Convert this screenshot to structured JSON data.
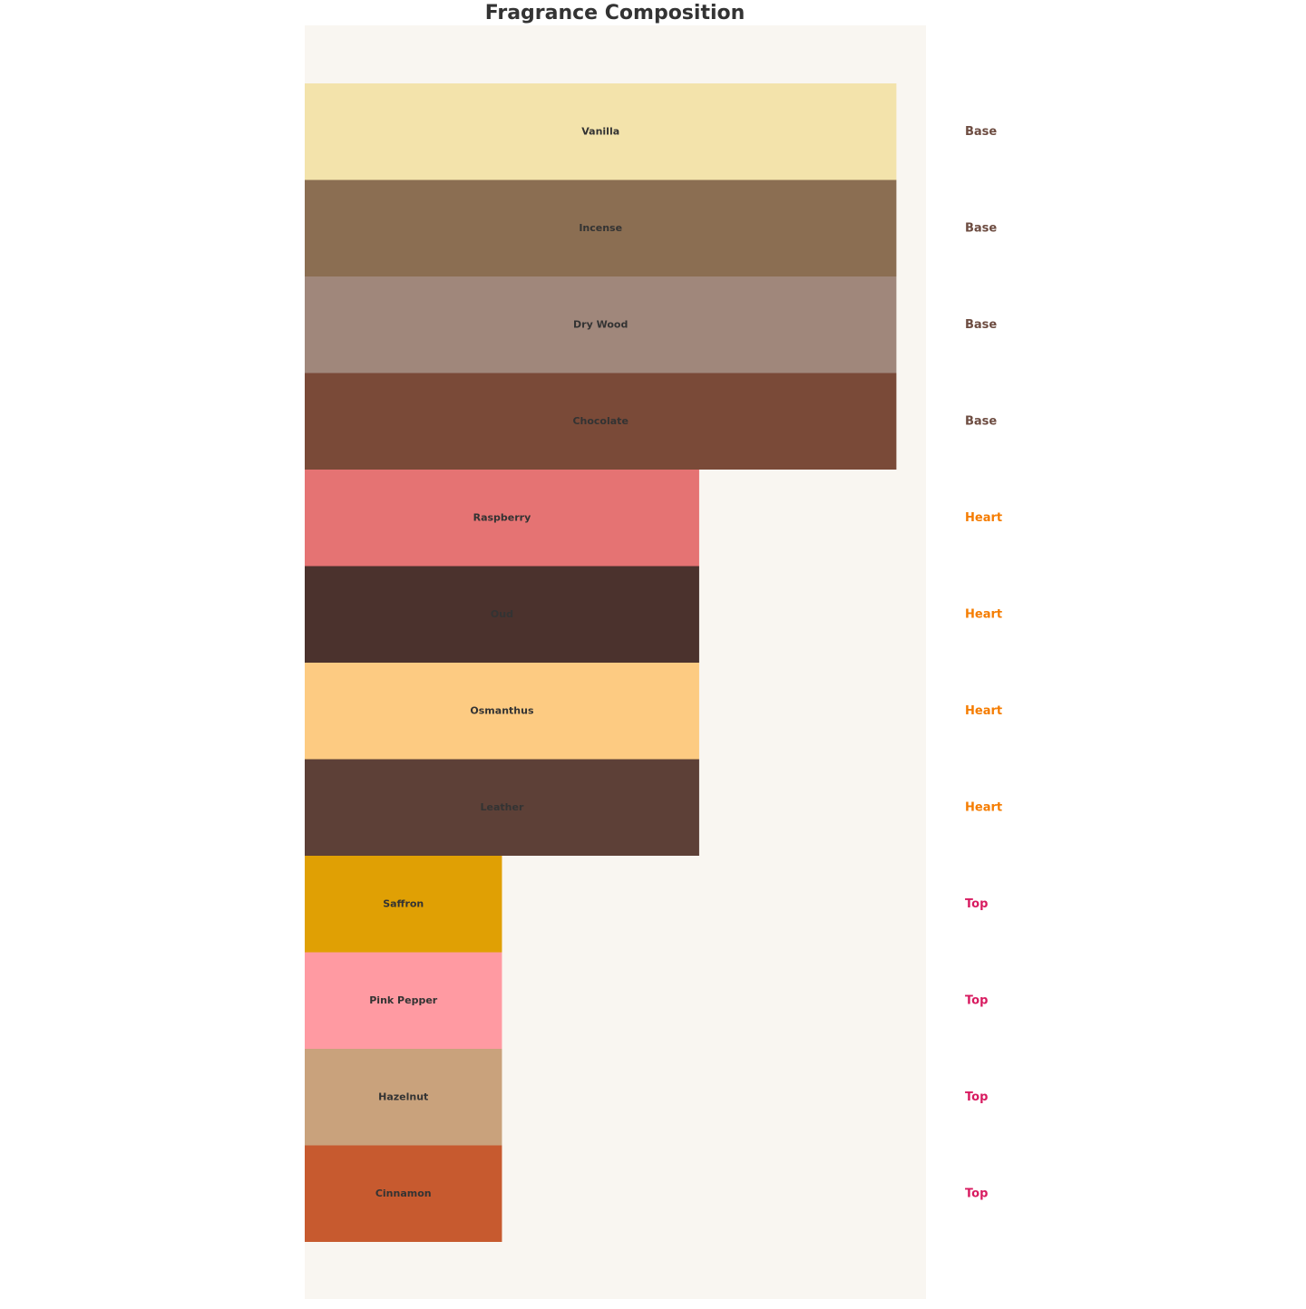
{
  "chart_data": {
    "type": "bar",
    "orientation": "horizontal",
    "title": "Fragrance Composition",
    "categories": [
      "Vanilla",
      "Incense",
      "Dry Wood",
      "Chocolate",
      "Raspberry",
      "Oud",
      "Osmanthus",
      "Leather",
      "Saffron",
      "Pink Pepper",
      "Hazelnut",
      "Cinnamon"
    ],
    "values": [
      3,
      3,
      3,
      3,
      2,
      2,
      2,
      2,
      1,
      1,
      1,
      1
    ],
    "colors": [
      "#f3e3ab",
      "#8b6e52",
      "#a0877b",
      "#7a4a38",
      "#e57373",
      "#4b322d",
      "#fdcb82",
      "#5d4037",
      "#e0a004",
      "#ff9aa2",
      "#c9a27c",
      "#c75a2f"
    ],
    "levels": [
      "Base",
      "Base",
      "Base",
      "Base",
      "Heart",
      "Heart",
      "Heart",
      "Heart",
      "Top",
      "Top",
      "Top",
      "Top"
    ],
    "level_colors": {
      "Base": "#6d4c41",
      "Heart": "#f57c00",
      "Top": "#d81b60"
    },
    "xlim": [
      0,
      3.15
    ],
    "background": "#f9f6f1"
  }
}
